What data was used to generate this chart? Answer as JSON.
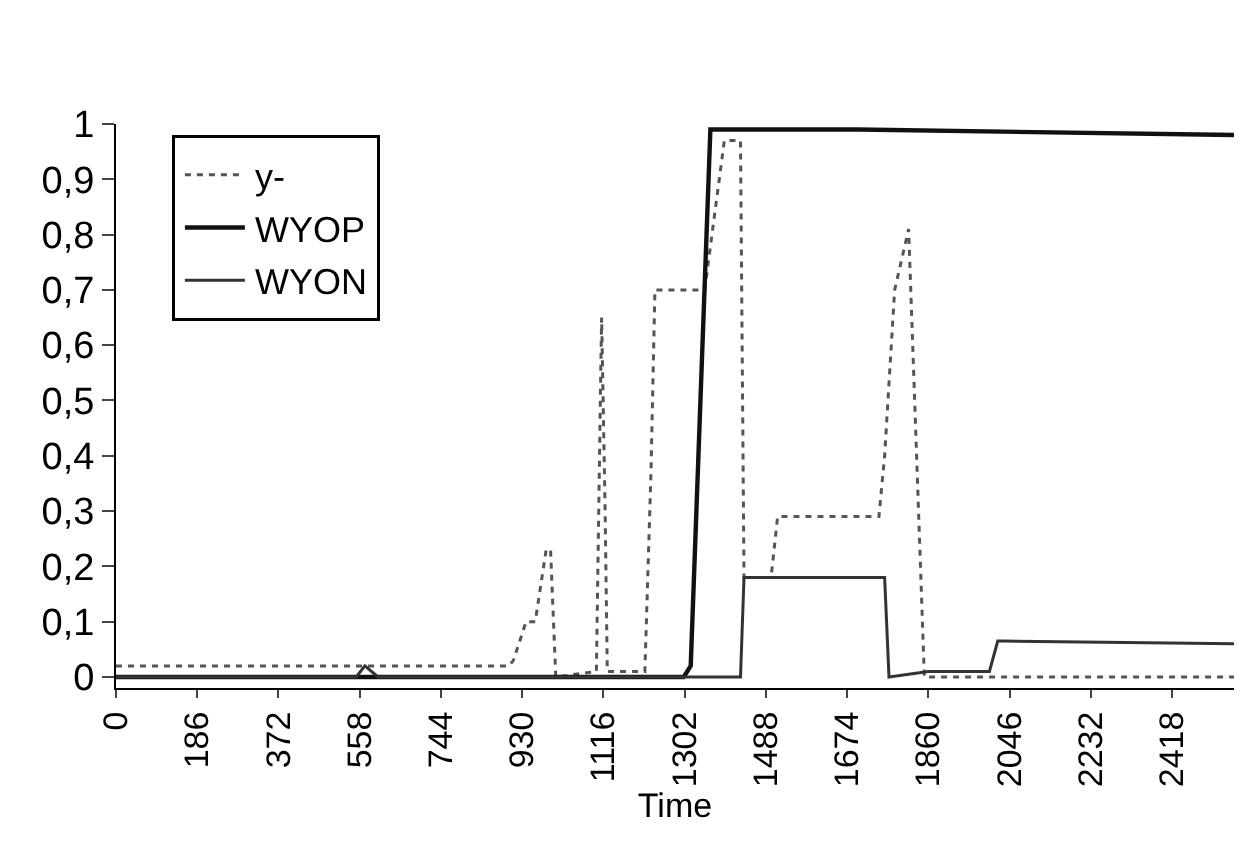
{
  "chart_data": {
    "type": "line",
    "xlabel": "Time",
    "xlim": [
      0,
      2560
    ],
    "xticks": [
      0,
      186,
      372,
      558,
      744,
      930,
      1116,
      1302,
      1488,
      1674,
      1860,
      2046,
      2232,
      2418
    ],
    "ylim": [
      -0.02,
      1
    ],
    "yticks": [
      0,
      {
        "value": 0.1,
        "label": "0,1"
      },
      {
        "value": 0.2,
        "label": "0,2"
      },
      {
        "value": 0.3,
        "label": "0,3"
      },
      {
        "value": 0.4,
        "label": "0,4"
      },
      {
        "value": 0.5,
        "label": "0,5"
      },
      {
        "value": 0.6,
        "label": "0,6"
      },
      {
        "value": 0.7,
        "label": "0,7"
      },
      {
        "value": 0.8,
        "label": "0,8"
      },
      {
        "value": 0.9,
        "label": "0,9"
      },
      1
    ],
    "grid": false,
    "legend": "top left",
    "marker": "none",
    "series": [
      {
        "name": "y-",
        "color": "#555555",
        "line_style": "dotted",
        "x": [
          0,
          900,
          910,
          939,
          960,
          985,
          995,
          1007,
          1100,
          1110,
          1112,
          1120,
          1125,
          1211,
          1225,
          1234,
          1348,
          1393,
          1430,
          1438,
          1500,
          1515,
          1747,
          1760,
          1783,
          1815,
          1851,
          1900,
          2560
        ],
        "values": [
          0.02,
          0.02,
          0.03,
          0.1,
          0.1,
          0.23,
          0.23,
          0.0,
          0.01,
          0.55,
          0.65,
          0.3,
          0.01,
          0.01,
          0.37,
          0.7,
          0.7,
          0.97,
          0.97,
          0.18,
          0.18,
          0.29,
          0.29,
          0.4,
          0.7,
          0.81,
          0.0,
          0.0,
          0.0
        ]
      },
      {
        "name": "WYOP",
        "color": "#111111",
        "line_style": "solid",
        "x": [
          0,
          1300,
          1316,
          1361,
          1700,
          2560
        ],
        "values": [
          0.0,
          0.0,
          0.02,
          0.99,
          0.99,
          0.98
        ]
      },
      {
        "name": "WYON",
        "color": "#333333",
        "line_style": "solid",
        "x": [
          0,
          550,
          570,
          600,
          1430,
          1438,
          1543,
          1760,
          1770,
          1860,
          2000,
          2019,
          2030,
          2560
        ],
        "values": [
          0.0,
          0.0,
          0.02,
          0.0,
          0.0,
          0.18,
          0.18,
          0.18,
          0.0,
          0.01,
          0.01,
          0.065,
          0.065,
          0.06
        ]
      }
    ]
  }
}
